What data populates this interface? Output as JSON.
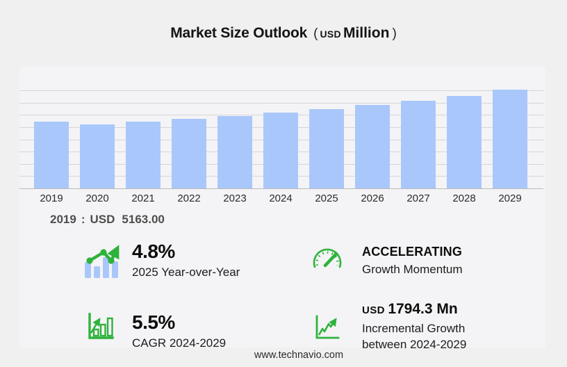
{
  "title": {
    "text": "Market Size Outlook",
    "open_paren": "(",
    "currency": "USD",
    "unit": "Million",
    "close_paren": ")"
  },
  "chart_data": {
    "type": "bar",
    "title": "Market Size Outlook (USD Million)",
    "categories": [
      "2019",
      "2020",
      "2021",
      "2022",
      "2023",
      "2024",
      "2025",
      "2026",
      "2027",
      "2028",
      "2029"
    ],
    "values": [
      5163,
      4970,
      5150,
      5380,
      5580,
      5845,
      6126,
      6440,
      6760,
      7130,
      7640
    ],
    "series_name": "Market size (USD Million)",
    "xlabel": "",
    "ylabel": "USD Million",
    "ylim": [
      0,
      7700
    ],
    "grid": true,
    "legend": "none",
    "bar_color": "#a9c7fb",
    "annotation": "2019 : USD 5163.00"
  },
  "callout": {
    "year": "2019",
    "sep": ":",
    "currency": "USD",
    "value": "5163.00"
  },
  "stats": [
    {
      "value": "4.8%",
      "label": "2025 Year-over-Year",
      "icon": "bar-line-trend-icon"
    },
    {
      "value": "ACCELERATING",
      "label": "Growth Momentum",
      "icon": "speedometer-icon"
    },
    {
      "value": "5.5%",
      "label": "CAGR 2024-2029",
      "icon": "growth-bars-icon"
    },
    {
      "currency": "USD",
      "value": "1794.3 Mn",
      "label": "Incremental Growth",
      "label2": "between 2024-2029",
      "icon": "line-growth-icon"
    }
  ],
  "footer": {
    "url": "www.technavio.com"
  },
  "colors": {
    "bar": "#a9c7fb",
    "green": "#2fb23c",
    "background": "#f0f0f1"
  }
}
